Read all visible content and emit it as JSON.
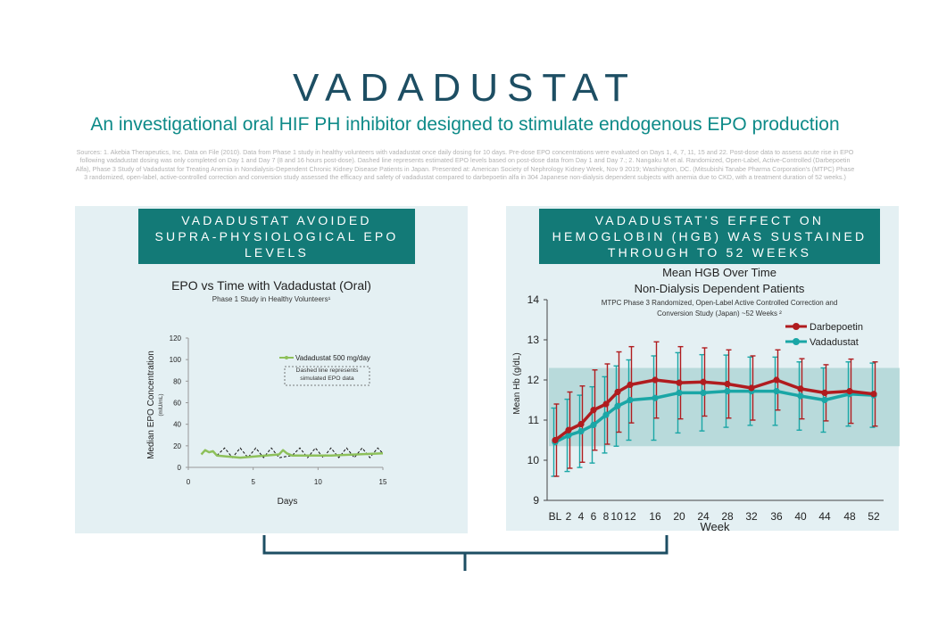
{
  "header": {
    "title": "VADADUSTAT",
    "subtitle": "An investigational oral HIF PH inhibitor designed to stimulate endogenous EPO production",
    "sources": "Sources: 1. Akebia Therapeutics, Inc. Data on File (2010). Data from Phase 1 study in healthy volunteers with vadadustat once daily dosing for 10 days. Pre-dose EPO concentrations were evaluated on Days 1, 4, 7, 11, 15 and 22. Post-dose data to assess acute rise in EPO following vadadustat dosing was only completed on Day 1 and Day 7 (8 and 16 hours post-dose). Dashed line represents estimated EPO levels based on post-dose data from Day 1 and Day 7.; 2. Nangaku M et al. Randomized, Open-Label, Active-Controlled (Darbepoetin Alfa), Phase 3 Study of Vadadustat for Treating Anemia in Nondialysis-Dependent Chronic Kidney Disease Patients in Japan. Presented at: American Society of Nephrology Kidney Week, Nov 9 2019; Washington, DC. (Mitsubishi Tanabe Pharma Corporation's (MTPC) Phase 3 randomized, open-label, active-controlled correction and conversion study assessed the efficacy and safety of vadadustat compared to darbepoetin alfa in 304 Japanese non-dialysis dependent subjects with anemia due to CKD, with a treatment duration of 52 weeks.)"
  },
  "left_panel": {
    "banner_lines": [
      "VADADUSTAT AVOIDED",
      "SUPRA-PHYSIOLOGICAL EPO",
      "LEVELS"
    ]
  },
  "right_panel": {
    "banner_lines": [
      "VADADUSTAT'S EFFECT ON",
      "HEMOGLOBIN (HGB) WAS SUSTAINED",
      "THROUGH TO 52 WEEKS"
    ]
  },
  "colors": {
    "title": "#1d4e63",
    "subtitle": "#0d8a88",
    "banner": "#137a77",
    "panel_bg": "#e4f0f3",
    "vadadustat_epo": "#8dc05a",
    "darbepoetin": "#b01c1f",
    "vadadustat_hgb": "#1aa6a6",
    "target_band": "#a9d3d3"
  },
  "chart_data": [
    {
      "type": "line",
      "title": "EPO vs Time with Vadadustat (Oral)",
      "subtitle": "Phase 1 Study in Healthy Volunteers¹",
      "xlabel": "Days",
      "ylabel": "Median EPO Concentration",
      "ylabel_unit": "(mIU/mL)",
      "xlim": [
        0,
        15
      ],
      "ylim": [
        0,
        120
      ],
      "xticks": [
        0,
        5,
        10,
        15
      ],
      "yticks": [
        0,
        20,
        40,
        60,
        80,
        100,
        120
      ],
      "legend": "top-right",
      "annotation": "Dashed line represents simulated EPO data",
      "series": [
        {
          "name": "Vadadustat 500 mg/day",
          "x": [
            1,
            1.3,
            1.6,
            1.9,
            2.2,
            4,
            7,
            7.3,
            7.6,
            8,
            11,
            15
          ],
          "y": [
            12,
            16,
            14,
            15,
            11,
            9,
            12,
            16,
            13,
            11,
            11,
            13
          ]
        },
        {
          "name": "simulated",
          "dashed": true,
          "x": [
            2.2,
            2.8,
            3.4,
            4,
            4.6,
            5.2,
            5.8,
            6.4,
            7,
            8,
            8.6,
            9.2,
            9.8,
            10.4,
            11,
            11.6,
            12.2,
            12.8,
            13.4,
            14,
            14.6,
            15
          ],
          "y": [
            11,
            18,
            9,
            18,
            9,
            18,
            9,
            18,
            9,
            11,
            18,
            9,
            18,
            9,
            18,
            9,
            18,
            9,
            18,
            9,
            18,
            13
          ]
        }
      ]
    },
    {
      "type": "line",
      "title": "Mean HGB Over Time",
      "title_line2": "Non-Dialysis Dependent Patients",
      "subtitle_line1": "MTPC Phase 3 Randomized, Open-Label Active Controlled Correction and",
      "subtitle_line2": "Conversion Study (Japan) ~52 Weeks ²",
      "xlabel": "Week",
      "ylabel": "Mean Hb (g/dL)",
      "ylim": [
        9,
        14
      ],
      "yticks": [
        9,
        10,
        11,
        12,
        13,
        14
      ],
      "categories": [
        "BL",
        "2",
        "4",
        "6",
        "8",
        "10",
        "12",
        "16",
        "20",
        "24",
        "28",
        "32",
        "36",
        "40",
        "44",
        "48",
        "52"
      ],
      "target_band": [
        10.35,
        12.3
      ],
      "legend": "top-right",
      "series": [
        {
          "name": "Darbepoetin",
          "x": [
            0,
            2,
            4,
            6,
            8,
            10,
            12,
            16,
            20,
            24,
            28,
            32,
            36,
            40,
            44,
            48,
            52
          ],
          "y": [
            10.5,
            10.75,
            10.9,
            11.25,
            11.4,
            11.7,
            11.88,
            12.0,
            11.93,
            11.95,
            11.9,
            11.8,
            12.0,
            11.78,
            11.68,
            11.72,
            11.65
          ],
          "error": [
            0.9,
            0.95,
            0.95,
            1.0,
            1.0,
            1.0,
            0.95,
            0.95,
            0.9,
            0.85,
            0.85,
            0.8,
            0.75,
            0.75,
            0.7,
            0.8,
            0.8
          ]
        },
        {
          "name": "Vadadustat",
          "x": [
            0,
            2,
            4,
            6,
            8,
            10,
            12,
            16,
            20,
            24,
            28,
            32,
            36,
            40,
            44,
            48,
            52
          ],
          "y": [
            10.45,
            10.62,
            10.72,
            10.88,
            11.13,
            11.35,
            11.5,
            11.55,
            11.68,
            11.68,
            11.72,
            11.72,
            11.72,
            11.6,
            11.5,
            11.65,
            11.62
          ],
          "error": [
            0.85,
            0.9,
            0.9,
            0.95,
            0.95,
            1.0,
            1.0,
            1.05,
            1.0,
            0.95,
            0.9,
            0.85,
            0.85,
            0.85,
            0.8,
            0.8,
            0.8
          ]
        }
      ]
    }
  ]
}
